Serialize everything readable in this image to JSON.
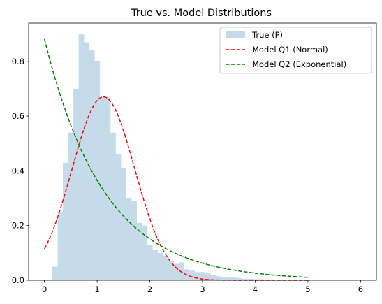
{
  "chart_data": {
    "type": "bar",
    "title": "True vs. Model Distributions",
    "xlabel": "",
    "ylabel": "",
    "xlim": [
      -0.3,
      6.3
    ],
    "ylim": [
      0,
      0.94
    ],
    "x_ticks": [
      0,
      1,
      2,
      3,
      4,
      5,
      6
    ],
    "y_ticks": [
      0.0,
      0.2,
      0.4,
      0.6,
      0.8
    ],
    "grid": false,
    "legend_position": "top-right",
    "histogram": {
      "name": "True (P)",
      "color": "#c6dbea",
      "bin_width": 0.1,
      "bins_start": [
        0.15,
        0.25,
        0.35,
        0.45,
        0.55,
        0.65,
        0.75,
        0.85,
        0.95,
        1.05,
        1.15,
        1.25,
        1.35,
        1.45,
        1.55,
        1.65,
        1.75,
        1.85,
        1.95,
        2.05,
        2.15,
        2.25,
        2.35,
        2.45,
        2.55,
        2.65,
        2.75,
        2.85,
        2.95,
        3.05,
        3.15,
        3.25,
        3.35,
        3.45,
        3.55,
        3.65,
        3.75,
        3.85,
        3.95,
        4.05,
        4.15
      ],
      "densities": [
        0.05,
        0.25,
        0.43,
        0.54,
        0.7,
        0.9,
        0.87,
        0.84,
        0.8,
        0.67,
        0.67,
        0.54,
        0.46,
        0.41,
        0.3,
        0.29,
        0.21,
        0.2,
        0.13,
        0.11,
        0.1,
        0.09,
        0.07,
        0.06,
        0.065,
        0.04,
        0.035,
        0.03,
        0.03,
        0.025,
        0.02,
        0.015,
        0.012,
        0.01,
        0.01,
        0.008,
        0.006,
        0.005,
        0.004,
        0.004,
        0.003
      ]
    },
    "series": [
      {
        "name": "Model Q1 (Normal)",
        "color": "#ff0000",
        "style": "dashed",
        "curve": "normal",
        "x_range": [
          0,
          5
        ],
        "mean": 1.12,
        "std": 0.595
      },
      {
        "name": "Model Q2 (Exponential)",
        "color": "#008000",
        "style": "dashed",
        "curve": "exponential",
        "x_range": [
          0,
          5
        ],
        "rate": 0.882
      }
    ]
  }
}
